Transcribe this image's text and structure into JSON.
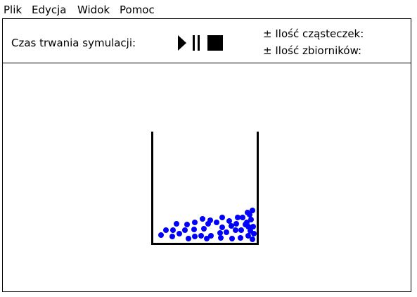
{
  "menu": {
    "items": [
      {
        "label": "Plik"
      },
      {
        "label": "Edycja"
      },
      {
        "label": "Widok"
      },
      {
        "label": "Pomoc"
      }
    ]
  },
  "toolbar": {
    "duration_label": "Czas trwania symulacji:",
    "play_icon": "play-icon",
    "pause_icon": "pause-icon",
    "stop_icon": "stop-icon",
    "plus_minus": "±",
    "particles_label": "Ilość cząsteczek:",
    "tanks_label": "Ilość zbiorników:"
  },
  "simulation": {
    "particle_color": "#0000ff",
    "particle_count": 46
  }
}
